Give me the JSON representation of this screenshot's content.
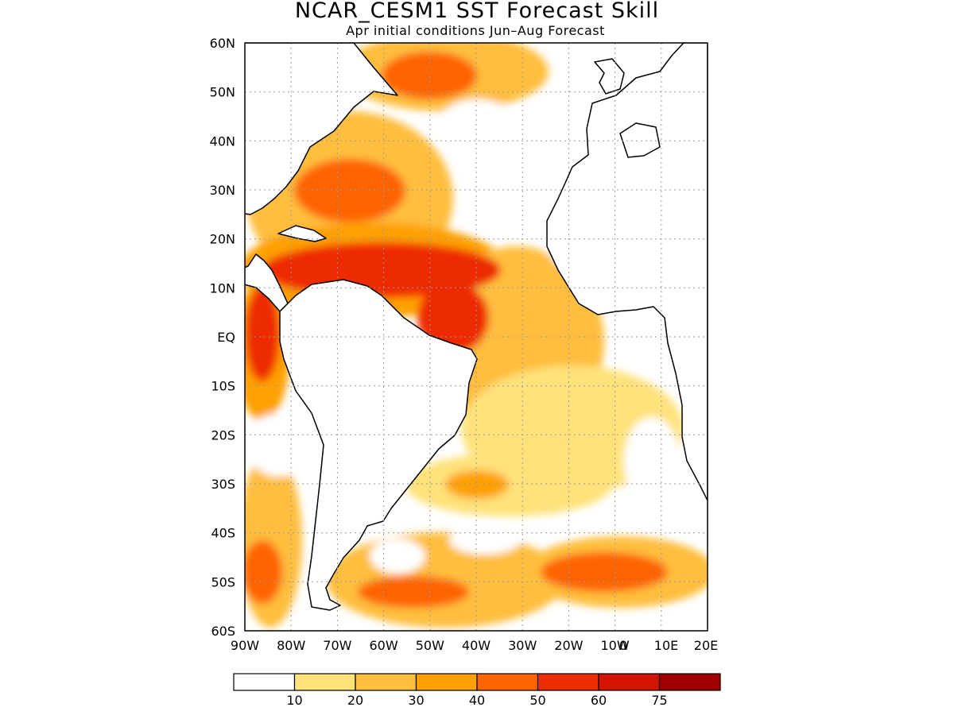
{
  "title": "NCAR_CESM1 SST Forecast Skill",
  "subtitle": "Apr initial conditions  Jun–Aug Forecast",
  "lat_labels": [
    "60N",
    "50N",
    "40N",
    "30N",
    "20N",
    "10N",
    "EQ",
    "10S",
    "20S",
    "30S",
    "40S",
    "50S",
    "60S"
  ],
  "lon_labels": [
    "90W",
    "80W",
    "70W",
    "60W",
    "50W",
    "40W",
    "30W",
    "20W",
    "10W",
    "0",
    "10E",
    "20E"
  ],
  "colorbar": {
    "colors": [
      "#ffffff",
      "#ffe27a",
      "#ffbe3c",
      "#ffa000",
      "#ff6400",
      "#ee2c00",
      "#d21400",
      "#a00000"
    ],
    "labels": [
      "10",
      "20",
      "30",
      "40",
      "50",
      "60",
      "75"
    ]
  }
}
